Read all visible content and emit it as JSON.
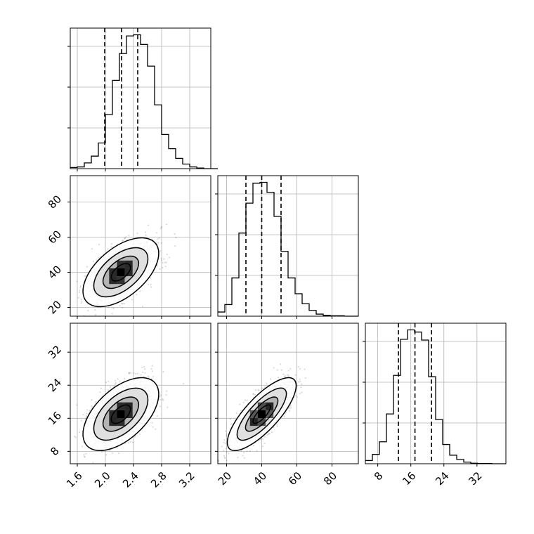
{
  "chart_data": {
    "type": "corner",
    "title": "",
    "grid": true,
    "parameters": [
      {
        "range": [
          1.5,
          3.5
        ],
        "ticks": [
          "1.6",
          "2.0",
          "2.4",
          "2.8",
          "3.2"
        ],
        "tick_values": [
          1.6,
          2.0,
          2.4,
          2.8,
          3.2
        ],
        "quantiles": [
          1.99,
          2.23,
          2.46
        ]
      },
      {
        "range": [
          15,
          95
        ],
        "ticks": [
          "20",
          "40",
          "60",
          "80"
        ],
        "tick_values": [
          20,
          40,
          60,
          80
        ],
        "quantiles": [
          31,
          40,
          51
        ]
      },
      {
        "range": [
          5,
          39
        ],
        "ticks": [
          "8",
          "16",
          "24",
          "32"
        ],
        "tick_values": [
          8,
          16,
          24,
          32
        ],
        "quantiles": [
          13,
          17,
          21
        ]
      }
    ],
    "histograms": [
      {
        "edges_start": 1.5,
        "bin_width": 0.1,
        "counts": [
          2,
          3,
          10,
          22,
          45,
          95,
          155,
          202,
          233,
          235,
          218,
          180,
          112,
          60,
          35,
          18,
          8,
          3,
          1,
          0,
          0
        ]
      },
      {
        "edges_start": 15,
        "bin_width": 4,
        "counts": [
          10,
          28,
          92,
          200,
          272,
          320,
          322,
          298,
          240,
          156,
          92,
          54,
          30,
          14,
          5,
          2,
          1,
          1,
          0,
          0
        ]
      },
      {
        "edges_start": 5,
        "bin_width": 1.7,
        "counts": [
          12,
          35,
          82,
          186,
          330,
          465,
          500,
          492,
          462,
          325,
          165,
          72,
          32,
          16,
          6,
          2,
          1,
          1,
          0,
          0
        ]
      }
    ],
    "joint": [
      {
        "x": 0,
        "y": 1,
        "mean": [
          2.22,
          40
        ],
        "sd": [
          0.22,
          8
        ],
        "rho": 0.55
      },
      {
        "x": 0,
        "y": 2,
        "mean": [
          2.22,
          17
        ],
        "sd": [
          0.22,
          3.6
        ],
        "rho": 0.55
      },
      {
        "x": 1,
        "y": 2,
        "mean": [
          40,
          17
        ],
        "sd": [
          8,
          3.6
        ],
        "rho": 0.78
      }
    ]
  }
}
